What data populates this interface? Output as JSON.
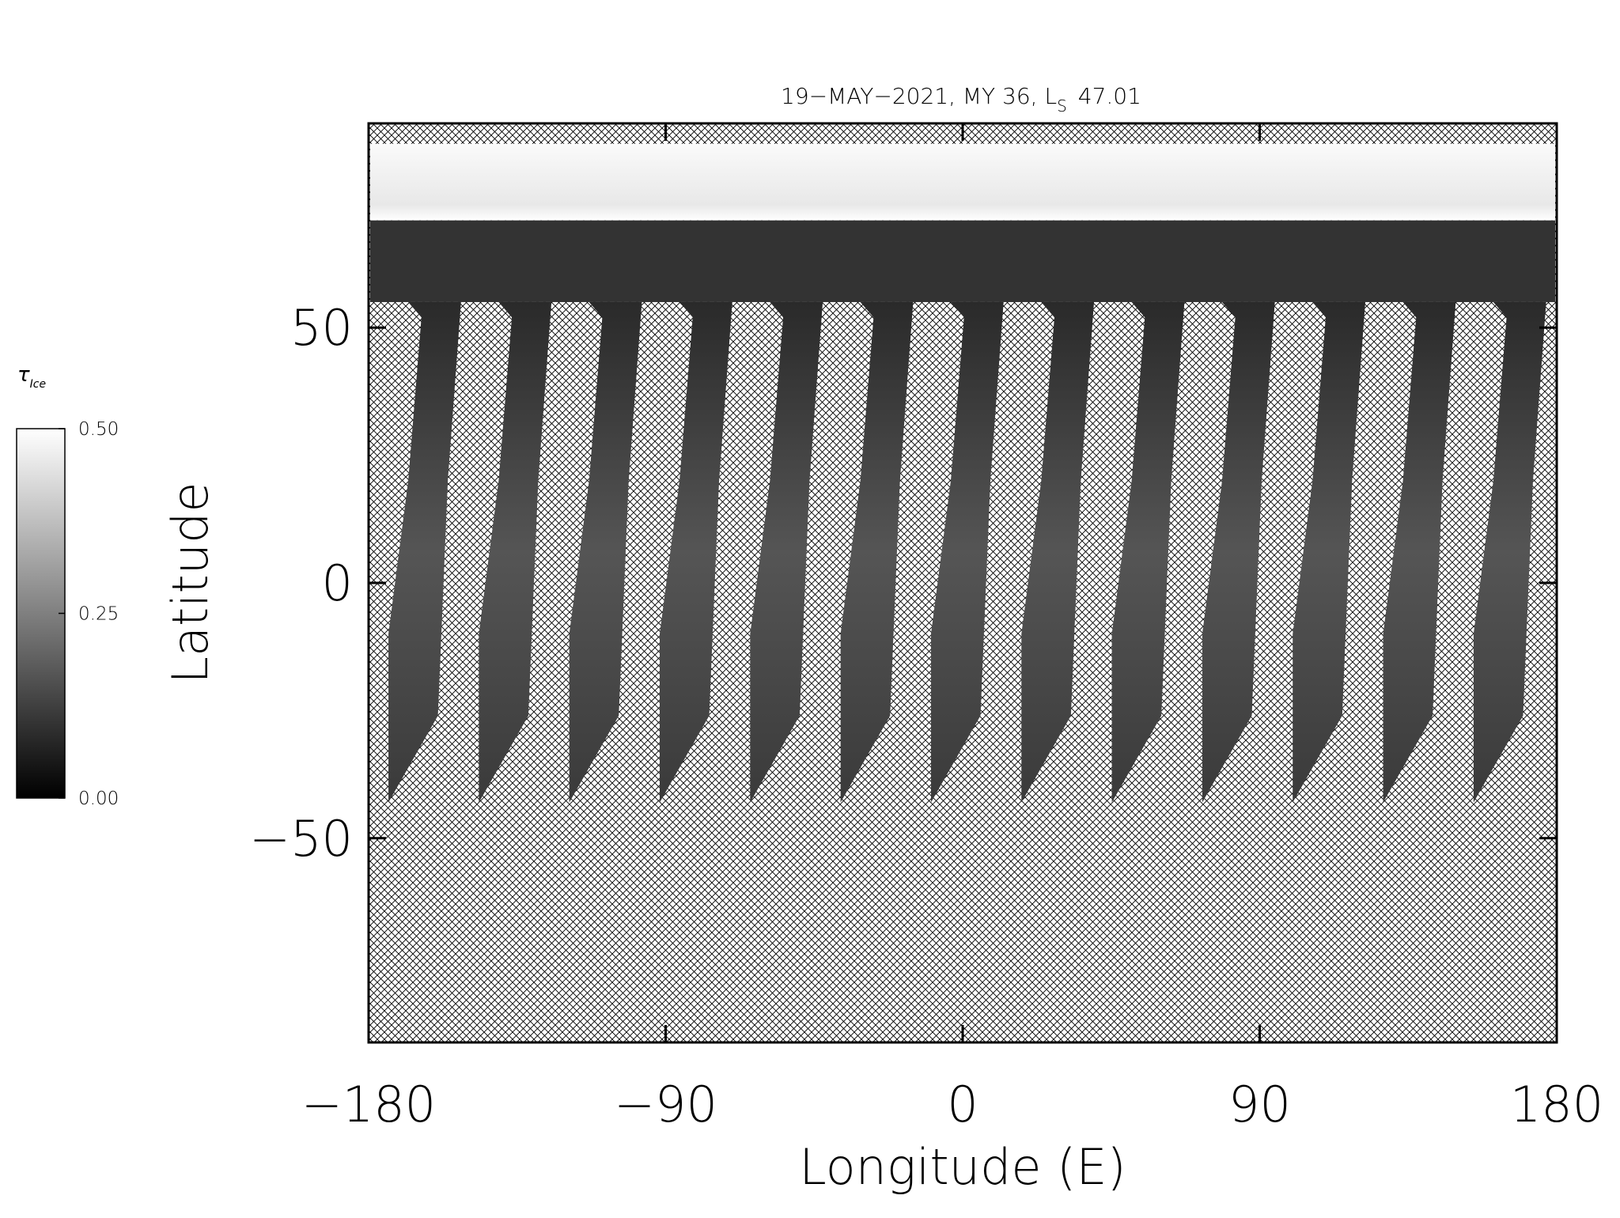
{
  "chart_data": {
    "type": "map",
    "title": "19−MAY−2021, MY 36,  L",
    "title_subscript": "S",
    "title_suffix": "47.01",
    "xlabel": "Longitude (E)",
    "ylabel": "Latitude",
    "xlim": [
      -180,
      180
    ],
    "xticks": [
      {
        "value": -180,
        "label": "−180"
      },
      {
        "value": -90,
        "label": "−90"
      },
      0,
      90,
      180
    ],
    "ylim": [
      -90,
      90
    ],
    "yticks": [
      {
        "value": -50,
        "label": "−50"
      },
      0,
      50
    ],
    "colorbar": {
      "label": "τ",
      "label_subscript": "Ice",
      "lim": [
        0,
        0.5
      ],
      "ticks": [
        {
          "value": 0,
          "label": "0.00"
        },
        {
          "value": 0.25,
          "label": "0.25"
        },
        {
          "value": 0.5,
          "label": "0.50"
        }
      ],
      "colors": [
        "#000000",
        "#ffffff"
      ]
    }
  }
}
